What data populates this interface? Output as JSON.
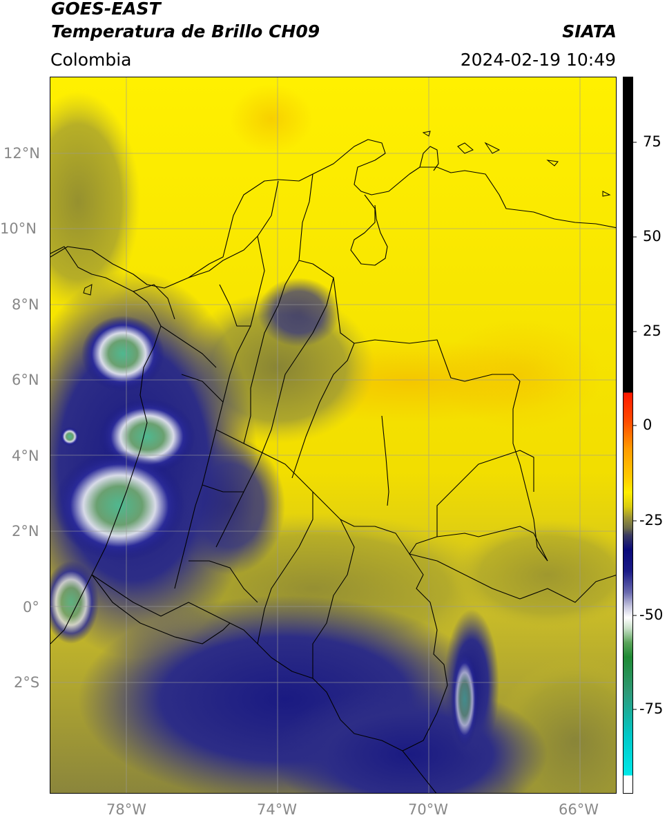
{
  "header": {
    "satellite": "GOES-EAST",
    "product": "Temperatura de Brillo CH09",
    "agency": "SIATA",
    "region": "Colombia",
    "datetime": "2024-02-19 10:49"
  },
  "map": {
    "lat_ticks": [
      "12°N",
      "10°N",
      "8°N",
      "6°N",
      "4°N",
      "2°N",
      "0°",
      "2°S"
    ],
    "lon_ticks": [
      "78°W",
      "74°W",
      "70°W",
      "66°W"
    ]
  },
  "colorbar": {
    "ticks": [
      "75",
      "50",
      "25",
      "0",
      "-25",
      "-50",
      "-75"
    ],
    "colors": {
      "black": "#000000",
      "red": "#ff2000",
      "orange": "#ff9c00",
      "yellow": "#ffee00",
      "olive": "#6b6b2a",
      "navy": "#0a0a7a",
      "white": "#ffffff",
      "green": "#1f8a34",
      "cyan": "#00e0e0"
    }
  },
  "colors": {
    "sea_yellow": "#ffee00",
    "land_yellow": "#f4e100",
    "cloud_navy": "#1a1a80",
    "cloud_white": "#ffffff",
    "cloud_green": "#3e9a6e",
    "border": "#000000",
    "grid": "#9a9a9a"
  }
}
